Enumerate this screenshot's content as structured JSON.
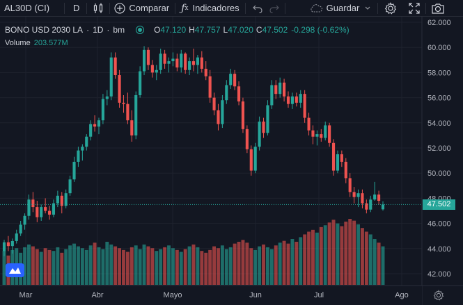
{
  "toolbar": {
    "symbol": "AL30D (CI)",
    "interval": "D",
    "compare_label": "Comparar",
    "indicators_label": "Indicadores",
    "save_label": "Guardar"
  },
  "legend": {
    "symbol_name": "BONO USD 2030 LA",
    "interval": "1D",
    "exchange": "bm",
    "open_label": "O",
    "open": "47.120",
    "high_label": "H",
    "high": "47.757",
    "low_label": "L",
    "low": "47.020",
    "close_label": "C",
    "close": "47.502",
    "change": "-0.298 (-0.62%)",
    "volume_label": "Volume",
    "volume_value": "203.577M"
  },
  "current_price_label": "47.502",
  "colors": {
    "up": "#26a69a",
    "down": "#ef5350",
    "background": "#131722",
    "grid": "#1e222d",
    "accent": "#2962ff"
  },
  "icons": [
    "candles-icon",
    "add-compare-icon",
    "indicators-icon",
    "undo-icon",
    "redo-icon",
    "cloud-save-icon",
    "gear-icon",
    "fullscreen-icon",
    "camera-icon",
    "tradingview-logo-icon"
  ],
  "chart_data": {
    "type": "candlestick",
    "y_ticks": [
      "62.000",
      "60.000",
      "58.000",
      "56.000",
      "54.000",
      "52.000",
      "50.000",
      "48.000",
      "46.000",
      "44.000",
      "42.000"
    ],
    "x_ticks": [
      "Mar",
      "Abr",
      "Mayo",
      "Jun",
      "Jul",
      "Ago"
    ],
    "ylim": [
      41,
      62
    ],
    "current_price": 47.502,
    "ohlc": [
      [
        43.8,
        44.7,
        43.4,
        44.5
      ],
      [
        44.5,
        45.0,
        43.8,
        44.2
      ],
      [
        44.2,
        44.8,
        43.6,
        44.6
      ],
      [
        44.6,
        45.5,
        44.4,
        45.2
      ],
      [
        45.2,
        46.2,
        45.0,
        45.9
      ],
      [
        45.9,
        46.8,
        45.5,
        46.6
      ],
      [
        46.6,
        48.3,
        46.3,
        47.9
      ],
      [
        47.9,
        48.5,
        46.9,
        47.3
      ],
      [
        47.3,
        47.8,
        46.1,
        46.5
      ],
      [
        46.5,
        47.5,
        46.2,
        47.3
      ],
      [
        47.3,
        48.0,
        46.8,
        47.0
      ],
      [
        47.0,
        47.4,
        46.3,
        46.7
      ],
      [
        46.7,
        47.9,
        46.5,
        47.6
      ],
      [
        47.6,
        48.6,
        47.3,
        48.2
      ],
      [
        48.2,
        48.5,
        46.8,
        47.4
      ],
      [
        47.4,
        48.7,
        47.2,
        48.4
      ],
      [
        48.4,
        49.8,
        48.2,
        49.5
      ],
      [
        49.5,
        51.3,
        49.3,
        50.9
      ],
      [
        50.9,
        52.1,
        50.5,
        51.8
      ],
      [
        51.8,
        52.3,
        51.0,
        52.1
      ],
      [
        52.1,
        53.1,
        51.8,
        52.9
      ],
      [
        52.9,
        54.2,
        52.6,
        53.9
      ],
      [
        53.9,
        54.6,
        53.3,
        53.7
      ],
      [
        53.7,
        54.4,
        53.1,
        54.2
      ],
      [
        54.2,
        56.3,
        53.9,
        55.9
      ],
      [
        55.9,
        56.6,
        55.4,
        56.1
      ],
      [
        56.1,
        59.6,
        55.8,
        59.2
      ],
      [
        59.2,
        59.6,
        57.5,
        57.8
      ],
      [
        57.8,
        58.2,
        55.2,
        55.6
      ],
      [
        55.6,
        56.2,
        54.8,
        55.5
      ],
      [
        55.5,
        56.4,
        53.9,
        54.2
      ],
      [
        54.2,
        55.0,
        52.5,
        53.0
      ],
      [
        53.0,
        56.5,
        52.7,
        56.2
      ],
      [
        56.2,
        58.5,
        56.0,
        58.1
      ],
      [
        58.1,
        60.1,
        57.8,
        59.8
      ],
      [
        59.8,
        60.0,
        58.2,
        58.6
      ],
      [
        58.6,
        59.0,
        57.6,
        58.0
      ],
      [
        58.0,
        58.6,
        57.4,
        58.2
      ],
      [
        58.2,
        59.9,
        57.9,
        59.5
      ],
      [
        59.5,
        59.8,
        58.3,
        58.7
      ],
      [
        58.7,
        59.2,
        58.0,
        58.9
      ],
      [
        58.9,
        59.6,
        58.5,
        59.1
      ],
      [
        59.1,
        59.5,
        58.1,
        58.4
      ],
      [
        58.4,
        59.8,
        58.0,
        59.5
      ],
      [
        59.5,
        59.6,
        57.9,
        58.2
      ],
      [
        58.2,
        59.2,
        57.8,
        58.9
      ],
      [
        58.9,
        59.9,
        58.1,
        58.6
      ],
      [
        58.6,
        59.4,
        57.9,
        59.2
      ],
      [
        59.2,
        59.7,
        58.0,
        58.3
      ],
      [
        58.3,
        58.9,
        57.4,
        57.7
      ],
      [
        57.7,
        58.2,
        55.6,
        56.0
      ],
      [
        56.0,
        56.4,
        54.6,
        55.0
      ],
      [
        55.0,
        55.5,
        53.4,
        53.9
      ],
      [
        53.9,
        56.2,
        53.6,
        55.8
      ],
      [
        55.8,
        57.4,
        55.5,
        57.0
      ],
      [
        57.0,
        58.3,
        56.7,
        57.9
      ],
      [
        57.9,
        58.2,
        56.6,
        56.9
      ],
      [
        56.9,
        57.3,
        55.4,
        55.7
      ],
      [
        55.7,
        56.0,
        53.2,
        53.5
      ],
      [
        53.5,
        53.8,
        51.6,
        51.9
      ],
      [
        51.9,
        52.2,
        49.8,
        50.2
      ],
      [
        50.2,
        52.4,
        50.0,
        52.1
      ],
      [
        52.1,
        54.5,
        51.8,
        54.1
      ],
      [
        54.1,
        54.4,
        52.8,
        53.2
      ],
      [
        53.2,
        55.8,
        53.0,
        55.4
      ],
      [
        55.4,
        57.4,
        55.1,
        57.0
      ],
      [
        57.0,
        57.4,
        55.9,
        56.3
      ],
      [
        56.3,
        57.6,
        56.0,
        57.2
      ],
      [
        57.2,
        57.5,
        55.7,
        56.1
      ],
      [
        56.1,
        56.5,
        55.2,
        55.5
      ],
      [
        55.5,
        56.4,
        55.1,
        56.1
      ],
      [
        56.1,
        56.4,
        55.3,
        55.6
      ],
      [
        55.6,
        56.6,
        55.2,
        56.3
      ],
      [
        56.3,
        56.6,
        54.0,
        54.4
      ],
      [
        54.4,
        54.8,
        53.0,
        53.4
      ],
      [
        53.4,
        53.8,
        52.3,
        52.9
      ],
      [
        52.9,
        53.4,
        52.2,
        53.1
      ],
      [
        53.1,
        53.5,
        52.5,
        52.8
      ],
      [
        52.8,
        54.1,
        52.6,
        53.8
      ],
      [
        53.8,
        54.0,
        52.1,
        52.4
      ],
      [
        52.4,
        52.7,
        49.8,
        50.2
      ],
      [
        50.2,
        51.8,
        50.0,
        51.5
      ],
      [
        51.5,
        51.8,
        50.5,
        50.9
      ],
      [
        50.9,
        51.2,
        49.2,
        49.6
      ],
      [
        49.6,
        50.0,
        48.1,
        48.5
      ],
      [
        48.5,
        48.9,
        47.6,
        48.1
      ],
      [
        48.1,
        48.7,
        47.3,
        48.4
      ],
      [
        48.4,
        48.7,
        47.2,
        47.6
      ],
      [
        47.6,
        47.9,
        46.8,
        47.1
      ],
      [
        47.1,
        48.2,
        46.9,
        47.9
      ],
      [
        47.9,
        49.3,
        47.8,
        48.3
      ],
      [
        48.3,
        48.6,
        47.5,
        47.8
      ],
      [
        47.12,
        47.757,
        47.02,
        47.502
      ]
    ],
    "volume": [
      37,
      32,
      38,
      40,
      35,
      41,
      44,
      42,
      39,
      36,
      40,
      38,
      37,
      41,
      35,
      39,
      43,
      45,
      42,
      40,
      38,
      43,
      46,
      41,
      39,
      47,
      44,
      42,
      40,
      38,
      36,
      41,
      43,
      39,
      44,
      42,
      40,
      37,
      39,
      41,
      43,
      40,
      38,
      36,
      39,
      42,
      44,
      41,
      37,
      35,
      38,
      42,
      40,
      43,
      39,
      41,
      45,
      47,
      49,
      46,
      40,
      38,
      42,
      44,
      41,
      39,
      43,
      46,
      48,
      45,
      50,
      47,
      52,
      55,
      58,
      60,
      57,
      63,
      65,
      68,
      71,
      67,
      64,
      69,
      72,
      70,
      66,
      62,
      58,
      55,
      50,
      46,
      42
    ]
  }
}
